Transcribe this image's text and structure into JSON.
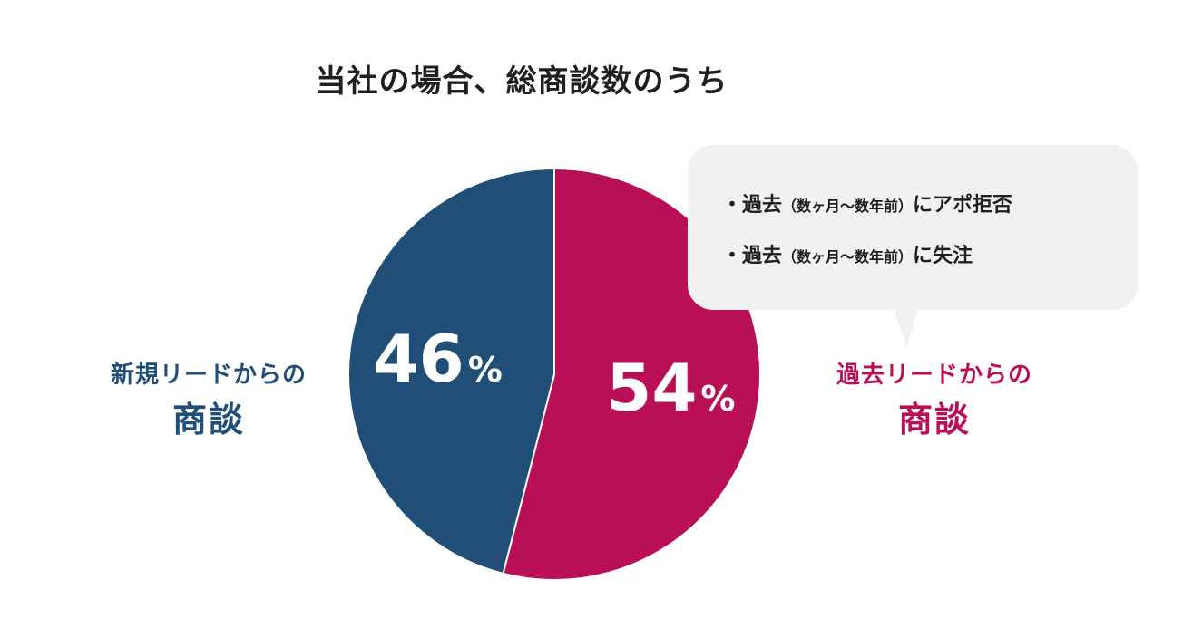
{
  "colors": {
    "new_leads": "#214e77",
    "past_leads": "#b80f57",
    "callout_bg": "#f1f1f1",
    "title": "#1f1f1f"
  },
  "title": "当社の場合、総商談数のうち",
  "left_label": {
    "line1": "新規リードからの",
    "line2": "商談"
  },
  "right_label": {
    "line1": "過去リードからの",
    "line2": "商談"
  },
  "callout": {
    "items": [
      {
        "bullet": "・過去",
        "note": "（数ヶ月〜数年前）",
        "tail": "にアポ拒否"
      },
      {
        "bullet": "・過去",
        "note": "（数ヶ月〜数年前）",
        "tail": "に失注"
      }
    ]
  },
  "chart_data": {
    "type": "pie",
    "title": "当社の場合、総商談数のうち",
    "unit": "%",
    "slices": [
      {
        "label": "過去リードからの商談",
        "value": 54,
        "display": "54",
        "color": "#b80f57"
      },
      {
        "label": "新規リードからの商談",
        "value": 46,
        "display": "46",
        "color": "#214e77"
      }
    ],
    "start": "12 o'clock",
    "direction": "clockwise"
  }
}
